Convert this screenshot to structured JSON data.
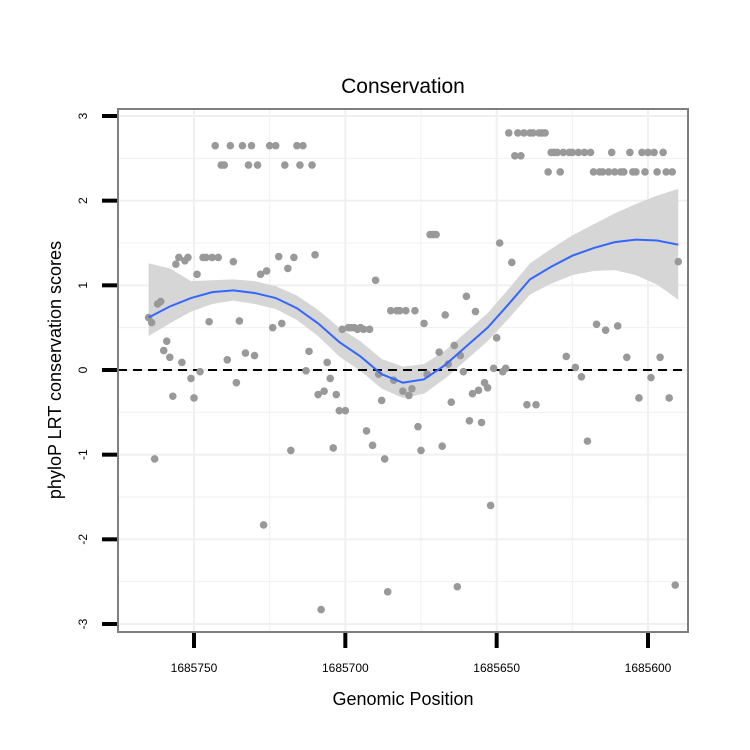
{
  "chart_data": {
    "type": "scatter",
    "title": "Conservation",
    "xlabel": "Genomic Position",
    "ylabel": "phyloP LRT conservation scores",
    "x_reversed": true,
    "xlim": [
      1685767,
      1685590
    ],
    "ylim": [
      -3,
      3
    ],
    "x_ticks": [
      1685750,
      1685700,
      1685650,
      1685600
    ],
    "x_tick_labels": [
      "1685750",
      "1685700",
      "1685650",
      "1685600"
    ],
    "y_ticks": [
      -3,
      -2,
      -1,
      0,
      1,
      2,
      3
    ],
    "y_tick_labels": [
      "-3",
      "-2",
      "-1",
      "0",
      "1",
      "2",
      "3"
    ],
    "grid": true,
    "reference_line": {
      "y": 0,
      "style": "dashed",
      "color": "#000000"
    },
    "colors": {
      "points": "#999999",
      "smooth_line": "#3366ff",
      "confidence_band": "#d6d6d6",
      "panel_border": "#7f7f7f",
      "grid": "#f0f0f0"
    },
    "points": [
      [
        1685765,
        0.62
      ],
      [
        1685764,
        0.56
      ],
      [
        1685763,
        -1.05
      ],
      [
        1685762,
        0.78
      ],
      [
        1685761,
        0.81
      ],
      [
        1685760,
        0.23
      ],
      [
        1685759,
        0.34
      ],
      [
        1685758,
        0.15
      ],
      [
        1685757,
        -0.31
      ],
      [
        1685756,
        1.25
      ],
      [
        1685755,
        1.33
      ],
      [
        1685754,
        0.09
      ],
      [
        1685753,
        1.29
      ],
      [
        1685752,
        1.33
      ],
      [
        1685751,
        -0.1
      ],
      [
        1685750,
        -0.33
      ],
      [
        1685749,
        1.13
      ],
      [
        1685748,
        -0.02
      ],
      [
        1685747,
        1.33
      ],
      [
        1685746,
        1.33
      ],
      [
        1685745,
        0.57
      ],
      [
        1685744,
        1.33
      ],
      [
        1685743,
        2.65
      ],
      [
        1685742,
        1.33
      ],
      [
        1685741,
        2.42
      ],
      [
        1685740,
        2.42
      ],
      [
        1685739,
        0.12
      ],
      [
        1685738,
        2.65
      ],
      [
        1685737,
        1.28
      ],
      [
        1685736,
        -0.15
      ],
      [
        1685735,
        0.58
      ],
      [
        1685734,
        2.65
      ],
      [
        1685733,
        0.2
      ],
      [
        1685732,
        2.42
      ],
      [
        1685731,
        2.65
      ],
      [
        1685730,
        0.17
      ],
      [
        1685729,
        2.42
      ],
      [
        1685728,
        1.13
      ],
      [
        1685727,
        -1.83
      ],
      [
        1685726,
        1.17
      ],
      [
        1685725,
        2.65
      ],
      [
        1685724,
        0.5
      ],
      [
        1685723,
        2.65
      ],
      [
        1685722,
        1.34
      ],
      [
        1685721,
        0.55
      ],
      [
        1685720,
        2.42
      ],
      [
        1685719,
        1.2
      ],
      [
        1685718,
        -0.95
      ],
      [
        1685717,
        1.33
      ],
      [
        1685716,
        2.65
      ],
      [
        1685715,
        2.42
      ],
      [
        1685714,
        2.65
      ],
      [
        1685713,
        -0.01
      ],
      [
        1685712,
        0.22
      ],
      [
        1685711,
        2.42
      ],
      [
        1685710,
        1.36
      ],
      [
        1685709,
        -0.29
      ],
      [
        1685708,
        -2.83
      ],
      [
        1685707,
        -0.25
      ],
      [
        1685706,
        0.09
      ],
      [
        1685705,
        -0.1
      ],
      [
        1685704,
        -0.92
      ],
      [
        1685703,
        -0.29
      ],
      [
        1685702,
        -0.48
      ],
      [
        1685701,
        0.48
      ],
      [
        1685700,
        -0.48
      ],
      [
        1685699,
        0.5
      ],
      [
        1685698,
        0.5
      ],
      [
        1685697,
        0.5
      ],
      [
        1685696,
        0.48
      ],
      [
        1685695,
        0.5
      ],
      [
        1685694,
        0.48
      ],
      [
        1685693,
        -0.72
      ],
      [
        1685692,
        0.48
      ],
      [
        1685691,
        -0.89
      ],
      [
        1685690,
        1.06
      ],
      [
        1685689,
        -0.05
      ],
      [
        1685688,
        -0.36
      ],
      [
        1685687,
        -1.05
      ],
      [
        1685686,
        -2.62
      ],
      [
        1685685,
        0.7
      ],
      [
        1685684,
        -0.12
      ],
      [
        1685683,
        0.7
      ],
      [
        1685682,
        0.7
      ],
      [
        1685681,
        -0.25
      ],
      [
        1685680,
        0.7
      ],
      [
        1685679,
        -0.3
      ],
      [
        1685678,
        -0.22
      ],
      [
        1685677,
        0.7
      ],
      [
        1685676,
        -0.67
      ],
      [
        1685675,
        -0.95
      ],
      [
        1685674,
        0.55
      ],
      [
        1685673,
        -0.05
      ],
      [
        1685672,
        1.6
      ],
      [
        1685671,
        1.6
      ],
      [
        1685670,
        1.6
      ],
      [
        1685669,
        0.21
      ],
      [
        1685668,
        -0.9
      ],
      [
        1685667,
        0.65
      ],
      [
        1685666,
        0.07
      ],
      [
        1685665,
        -0.38
      ],
      [
        1685664,
        0.29
      ],
      [
        1685663,
        -2.56
      ],
      [
        1685662,
        0.17
      ],
      [
        1685661,
        -0.02
      ],
      [
        1685660,
        0.87
      ],
      [
        1685659,
        -0.6
      ],
      [
        1685658,
        -0.28
      ],
      [
        1685657,
        0.69
      ],
      [
        1685656,
        -0.24
      ],
      [
        1685655,
        -0.62
      ],
      [
        1685654,
        -0.15
      ],
      [
        1685653,
        -0.21
      ],
      [
        1685652,
        -1.6
      ],
      [
        1685651,
        0.02
      ],
      [
        1685650,
        0.38
      ],
      [
        1685649,
        1.5
      ],
      [
        1685648,
        -0.02
      ],
      [
        1685647,
        0.02
      ],
      [
        1685646,
        2.8
      ],
      [
        1685645,
        1.27
      ],
      [
        1685644,
        2.53
      ],
      [
        1685643,
        2.8
      ],
      [
        1685642,
        2.53
      ],
      [
        1685641,
        2.8
      ],
      [
        1685640,
        -0.41
      ],
      [
        1685639,
        2.8
      ],
      [
        1685638,
        2.8
      ],
      [
        1685637,
        -0.41
      ],
      [
        1685636,
        2.8
      ],
      [
        1685635,
        2.8
      ],
      [
        1685634,
        2.8
      ],
      [
        1685633,
        2.34
      ],
      [
        1685632,
        2.57
      ],
      [
        1685631,
        2.57
      ],
      [
        1685630,
        2.57
      ],
      [
        1685629,
        2.34
      ],
      [
        1685628,
        2.57
      ],
      [
        1685627,
        0.16
      ],
      [
        1685626,
        2.57
      ],
      [
        1685625,
        2.57
      ],
      [
        1685624,
        0.03
      ],
      [
        1685623,
        2.57
      ],
      [
        1685622,
        -0.08
      ],
      [
        1685621,
        2.57
      ],
      [
        1685620,
        -0.84
      ],
      [
        1685619,
        2.57
      ],
      [
        1685618,
        2.34
      ],
      [
        1685617,
        0.54
      ],
      [
        1685616,
        2.34
      ],
      [
        1685615,
        2.34
      ],
      [
        1685614,
        0.47
      ],
      [
        1685613,
        2.34
      ],
      [
        1685612,
        2.57
      ],
      [
        1685611,
        2.34
      ],
      [
        1685610,
        0.52
      ],
      [
        1685609,
        2.34
      ],
      [
        1685608,
        2.34
      ],
      [
        1685607,
        0.15
      ],
      [
        1685606,
        2.57
      ],
      [
        1685605,
        2.34
      ],
      [
        1685604,
        2.34
      ],
      [
        1685603,
        -0.33
      ],
      [
        1685602,
        2.57
      ],
      [
        1685601,
        2.34
      ],
      [
        1685600,
        2.57
      ],
      [
        1685599,
        -0.09
      ],
      [
        1685598,
        2.57
      ],
      [
        1685597,
        2.34
      ],
      [
        1685596,
        0.15
      ],
      [
        1685595,
        2.57
      ],
      [
        1685594,
        2.34
      ],
      [
        1685593,
        -0.33
      ],
      [
        1685592,
        2.34
      ],
      [
        1685591,
        -2.54
      ],
      [
        1685590,
        1.28
      ]
    ],
    "smooth": {
      "x": [
        1685765,
        1685758,
        1685751,
        1685744,
        1685737,
        1685730,
        1685723,
        1685716,
        1685709,
        1685702,
        1685695,
        1685688,
        1685681,
        1685674,
        1685667,
        1685660,
        1685653,
        1685646,
        1685639,
        1685632,
        1685625,
        1685618,
        1685611,
        1685604,
        1685597,
        1685590
      ],
      "y": [
        0.62,
        0.75,
        0.85,
        0.92,
        0.94,
        0.91,
        0.85,
        0.73,
        0.55,
        0.33,
        0.16,
        -0.05,
        -0.15,
        -0.11,
        0.06,
        0.28,
        0.5,
        0.78,
        1.07,
        1.22,
        1.35,
        1.44,
        1.51,
        1.54,
        1.53,
        1.48
      ],
      "lower": [
        0.4,
        0.55,
        0.69,
        0.78,
        0.82,
        0.78,
        0.72,
        0.59,
        0.4,
        0.16,
        -0.01,
        -0.22,
        -0.33,
        -0.28,
        -0.1,
        0.12,
        0.34,
        0.61,
        0.89,
        1.02,
        1.12,
        1.17,
        1.18,
        1.12,
        1.01,
        0.83
      ],
      "upper": [
        1.26,
        1.2,
        1.05,
        1.06,
        1.07,
        1.05,
        0.99,
        0.88,
        0.71,
        0.5,
        0.34,
        0.13,
        0.04,
        0.07,
        0.23,
        0.45,
        0.67,
        0.96,
        1.26,
        1.43,
        1.59,
        1.72,
        1.85,
        1.96,
        2.06,
        2.14
      ]
    }
  }
}
